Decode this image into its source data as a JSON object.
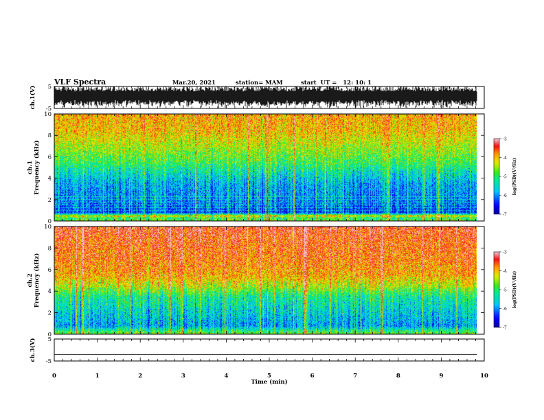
{
  "header": {
    "title": "VLF Spectra",
    "date": "Mar.20, 2021",
    "station": "station= MAM",
    "start": "start  UT =   12: 10: 1"
  },
  "chart_data": {
    "type": "heatmap",
    "x_axis": {
      "label": "Time (min)",
      "range": [
        0,
        10
      ],
      "ticks": [
        "0",
        "1",
        "2",
        "3",
        "4",
        "5",
        "6",
        "7",
        "8",
        "9",
        "10"
      ]
    },
    "data_end_min": 9.83,
    "panels": [
      {
        "id": "ch1-waveform",
        "type": "line",
        "ylabel": "ch.1(V)",
        "yticks": [
          "5",
          "-5"
        ],
        "ylim": [
          -5,
          5
        ],
        "amplitude_v": 5
      },
      {
        "id": "ch1-spectrogram",
        "type": "heatmap",
        "ylabel": "ch.1",
        "ylabel2": "Frequency (kHz)",
        "yticks": [
          "0",
          "2",
          "4",
          "6",
          "8",
          "10"
        ],
        "ylim": [
          0,
          10
        ],
        "freq_profile": [
          {
            "f": 0.0,
            "v": -4.6
          },
          {
            "f": 0.3,
            "v": -5.0
          },
          {
            "f": 0.5,
            "v": -4.1
          },
          {
            "f": 0.8,
            "v": -6.3
          },
          {
            "f": 2.0,
            "v": -6.0
          },
          {
            "f": 3.5,
            "v": -5.8
          },
          {
            "f": 4.5,
            "v": -5.4
          },
          {
            "f": 5.5,
            "v": -4.9
          },
          {
            "f": 6.5,
            "v": -4.6
          },
          {
            "f": 7.5,
            "v": -4.3
          },
          {
            "f": 8.5,
            "v": -4.0
          },
          {
            "f": 10.0,
            "v": -3.9
          }
        ],
        "colorbar": {
          "label": "log(PSD)(V²/Hz)",
          "range": [
            -7,
            -3
          ],
          "ticks": [
            "-3",
            "-4",
            "-5",
            "-6",
            "-7"
          ]
        }
      },
      {
        "id": "ch2-spectrogram",
        "type": "heatmap",
        "ylabel": "ch.2",
        "ylabel2": "Frequency (kHz)",
        "yticks": [
          "0",
          "2",
          "4",
          "6",
          "8",
          "10"
        ],
        "ylim": [
          0,
          10
        ],
        "freq_profile": [
          {
            "f": 0.0,
            "v": -4.6
          },
          {
            "f": 0.3,
            "v": -5.0
          },
          {
            "f": 0.8,
            "v": -5.9
          },
          {
            "f": 2.0,
            "v": -5.6
          },
          {
            "f": 3.5,
            "v": -5.2
          },
          {
            "f": 4.5,
            "v": -4.4
          },
          {
            "f": 5.5,
            "v": -3.9
          },
          {
            "f": 7.0,
            "v": -3.7
          },
          {
            "f": 8.5,
            "v": -3.6
          },
          {
            "f": 10.0,
            "v": -3.4
          }
        ],
        "colorbar": {
          "label": "log(PSD)(V²/Hz)",
          "range": [
            -7,
            -3
          ],
          "ticks": [
            "-3",
            "-4",
            "-5",
            "-6",
            "-7"
          ]
        }
      },
      {
        "id": "ch3-waveform",
        "type": "line",
        "ylabel": "ch.3(V)",
        "yticks": [
          "5",
          "-5"
        ],
        "ylim": [
          -5,
          5
        ],
        "level_v": -2
      }
    ]
  }
}
